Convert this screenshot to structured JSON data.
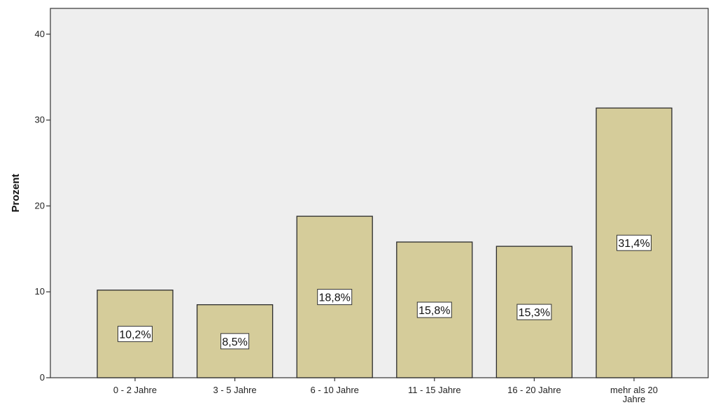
{
  "chart_data": {
    "type": "bar",
    "title": "",
    "xlabel": "",
    "ylabel": "Prozent",
    "ylim": [
      0,
      43
    ],
    "yticks": [
      0,
      10,
      20,
      30,
      40
    ],
    "grid": false,
    "categories": [
      [
        "0 - 2 Jahre"
      ],
      [
        "3 - 5 Jahre"
      ],
      [
        "6 - 10 Jahre"
      ],
      [
        "11 - 15 Jahre"
      ],
      [
        "16 - 20 Jahre"
      ],
      [
        "mehr als 20",
        "Jahre"
      ]
    ],
    "values": [
      10.2,
      8.5,
      18.8,
      15.8,
      15.3,
      31.4
    ],
    "data_labels": [
      "10,2%",
      "8,5%",
      "18,8%",
      "15,8%",
      "15,3%",
      "31,4%"
    ],
    "colors": {
      "bar_fill": "#d5cc9a",
      "bar_stroke": "#2b2b2b",
      "plot_background": "#eeeeee",
      "label_box": "#ffffff"
    }
  }
}
